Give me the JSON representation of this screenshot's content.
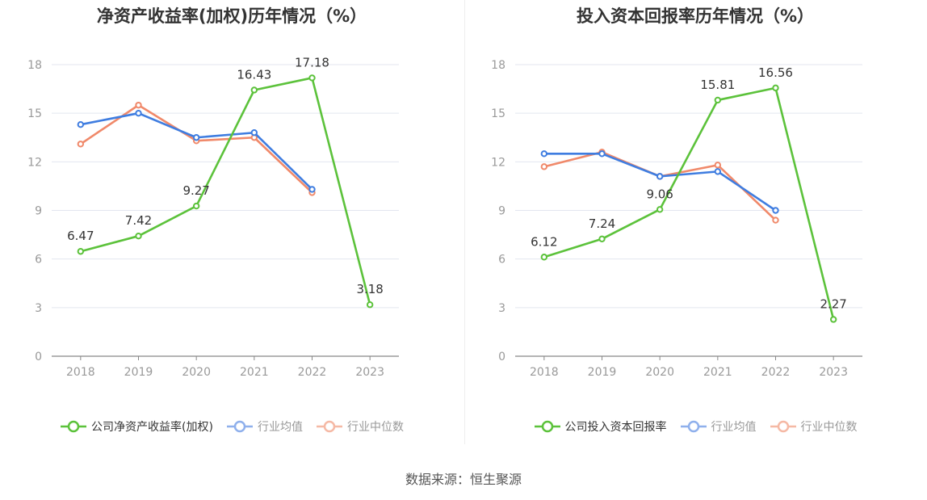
{
  "source_text": "数据来源：恒生聚源",
  "colors": {
    "company": "#5cc23b",
    "avg": "#3f7de0",
    "median": "#f0896a",
    "avg_legend": "#8fb0ec",
    "median_legend": "#f5b9a5"
  },
  "chart_data": [
    {
      "type": "line",
      "title": "净资产收益率(加权)历年情况（%）",
      "categories": [
        "2018",
        "2019",
        "2020",
        "2021",
        "2022",
        "2023"
      ],
      "yticks": [
        "0",
        "3",
        "6",
        "9",
        "12",
        "15",
        "18"
      ],
      "ylim": [
        0,
        18
      ],
      "grid": true,
      "legend_position": "bottom",
      "series": [
        {
          "name": "公司净资产收益率(加权)",
          "key": "company",
          "values": [
            6.47,
            7.42,
            9.27,
            16.43,
            17.18,
            3.18
          ],
          "labels": [
            "6.47",
            "7.42",
            "9.27",
            "16.43",
            "17.18",
            "3.18"
          ]
        },
        {
          "name": "行业均值",
          "key": "avg",
          "values": [
            14.3,
            15.0,
            13.5,
            13.8,
            10.3,
            null
          ]
        },
        {
          "name": "行业中位数",
          "key": "median",
          "values": [
            13.1,
            15.5,
            13.3,
            13.5,
            10.1,
            null
          ]
        }
      ]
    },
    {
      "type": "line",
      "title": "投入资本回报率历年情况（%）",
      "categories": [
        "2018",
        "2019",
        "2020",
        "2021",
        "2022",
        "2023"
      ],
      "yticks": [
        "0",
        "3",
        "6",
        "9",
        "12",
        "15",
        "18"
      ],
      "ylim": [
        0,
        18
      ],
      "grid": true,
      "legend_position": "bottom",
      "series": [
        {
          "name": "公司投入资本回报率",
          "key": "company",
          "values": [
            6.12,
            7.24,
            9.06,
            15.81,
            16.56,
            2.27
          ],
          "labels": [
            "6.12",
            "7.24",
            "9.06",
            "15.81",
            "16.56",
            "2.27"
          ]
        },
        {
          "name": "行业均值",
          "key": "avg",
          "values": [
            12.5,
            12.5,
            11.1,
            11.4,
            9.0,
            null
          ]
        },
        {
          "name": "行业中位数",
          "key": "median",
          "values": [
            11.7,
            12.6,
            11.1,
            11.8,
            8.4,
            null
          ]
        }
      ]
    }
  ]
}
